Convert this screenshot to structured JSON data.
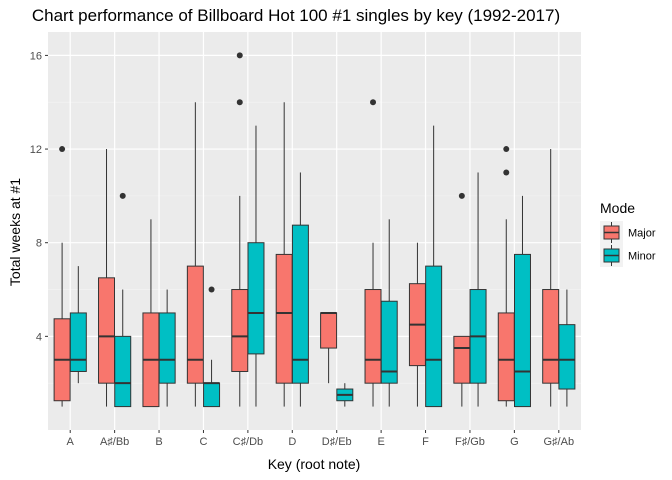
{
  "chart_data": {
    "type": "boxplot",
    "title": "Chart performance of Billboard Hot 100 #1 singles by key (1992-2017)",
    "xlabel": "Key (root note)",
    "ylabel": "Total weeks at #1",
    "ylim": [
      0,
      17
    ],
    "yticks": [
      4,
      8,
      12,
      16
    ],
    "grid": true,
    "legend": {
      "title": "Mode",
      "position": "right",
      "entries": [
        {
          "name": "Major",
          "color": "#F8766D"
        },
        {
          "name": "Minor",
          "color": "#00BFC4"
        }
      ]
    },
    "categories": [
      "A",
      "A♯/Bb",
      "B",
      "C",
      "C♯/Db",
      "D",
      "D♯/Eb",
      "E",
      "F",
      "F♯/Gb",
      "G",
      "G♯/Ab"
    ],
    "series": [
      {
        "name": "Major",
        "color": "#F8766D",
        "boxes": [
          {
            "min": 1,
            "q1": 1.25,
            "median": 3,
            "q3": 4.75,
            "max": 8,
            "outliers": [
              12
            ]
          },
          {
            "min": 1,
            "q1": 2,
            "median": 4,
            "q3": 6.5,
            "max": 12,
            "outliers": []
          },
          {
            "min": 1,
            "q1": 1,
            "median": 3,
            "q3": 5,
            "max": 9,
            "outliers": []
          },
          {
            "min": 1,
            "q1": 2,
            "median": 3,
            "q3": 7,
            "max": 14,
            "outliers": []
          },
          {
            "min": 1,
            "q1": 2.5,
            "median": 4,
            "q3": 6,
            "max": 10,
            "outliers": [
              14,
              16
            ]
          },
          {
            "min": 1,
            "q1": 2,
            "median": 5,
            "q3": 7.5,
            "max": 14,
            "outliers": []
          },
          {
            "min": 2,
            "q1": 3.5,
            "median": 5,
            "q3": 5,
            "max": 5,
            "outliers": []
          },
          {
            "min": 1,
            "q1": 2,
            "median": 3,
            "q3": 6,
            "max": 8,
            "outliers": [
              14
            ]
          },
          {
            "min": 1,
            "q1": 2.75,
            "median": 4.5,
            "q3": 6.25,
            "max": 8,
            "outliers": []
          },
          {
            "min": 1,
            "q1": 2,
            "median": 3.5,
            "q3": 4,
            "max": 4,
            "outliers": [
              10
            ]
          },
          {
            "min": 1,
            "q1": 1.25,
            "median": 3,
            "q3": 5,
            "max": 9,
            "outliers": [
              11,
              12
            ]
          },
          {
            "min": 1,
            "q1": 2,
            "median": 3,
            "q3": 6,
            "max": 12,
            "outliers": []
          }
        ]
      },
      {
        "name": "Minor",
        "color": "#00BFC4",
        "boxes": [
          {
            "min": 2,
            "q1": 2.5,
            "median": 3,
            "q3": 5,
            "max": 7,
            "outliers": []
          },
          {
            "min": 1,
            "q1": 1,
            "median": 2,
            "q3": 4,
            "max": 6,
            "outliers": [
              10
            ]
          },
          {
            "min": 1,
            "q1": 2,
            "median": 3,
            "q3": 5,
            "max": 6,
            "outliers": []
          },
          {
            "min": 1,
            "q1": 1,
            "median": 2,
            "q3": 2,
            "max": 3,
            "outliers": [
              6
            ]
          },
          {
            "min": 1,
            "q1": 3.25,
            "median": 5,
            "q3": 8,
            "max": 13,
            "outliers": []
          },
          {
            "min": 1,
            "q1": 2,
            "median": 3,
            "q3": 8.75,
            "max": 11,
            "outliers": []
          },
          {
            "min": 1,
            "q1": 1.25,
            "median": 1.5,
            "q3": 1.75,
            "max": 2,
            "outliers": []
          },
          {
            "min": 1,
            "q1": 2,
            "median": 2.5,
            "q3": 5.5,
            "max": 9,
            "outliers": []
          },
          {
            "min": 1,
            "q1": 1,
            "median": 3,
            "q3": 7,
            "max": 13,
            "outliers": []
          },
          {
            "min": 1,
            "q1": 2,
            "median": 4,
            "q3": 6,
            "max": 11,
            "outliers": []
          },
          {
            "min": 1,
            "q1": 1,
            "median": 2.5,
            "q3": 7.5,
            "max": 10,
            "outliers": []
          },
          {
            "min": 1,
            "q1": 1.75,
            "median": 3,
            "q3": 4.5,
            "max": 6,
            "outliers": []
          }
        ]
      }
    ]
  }
}
